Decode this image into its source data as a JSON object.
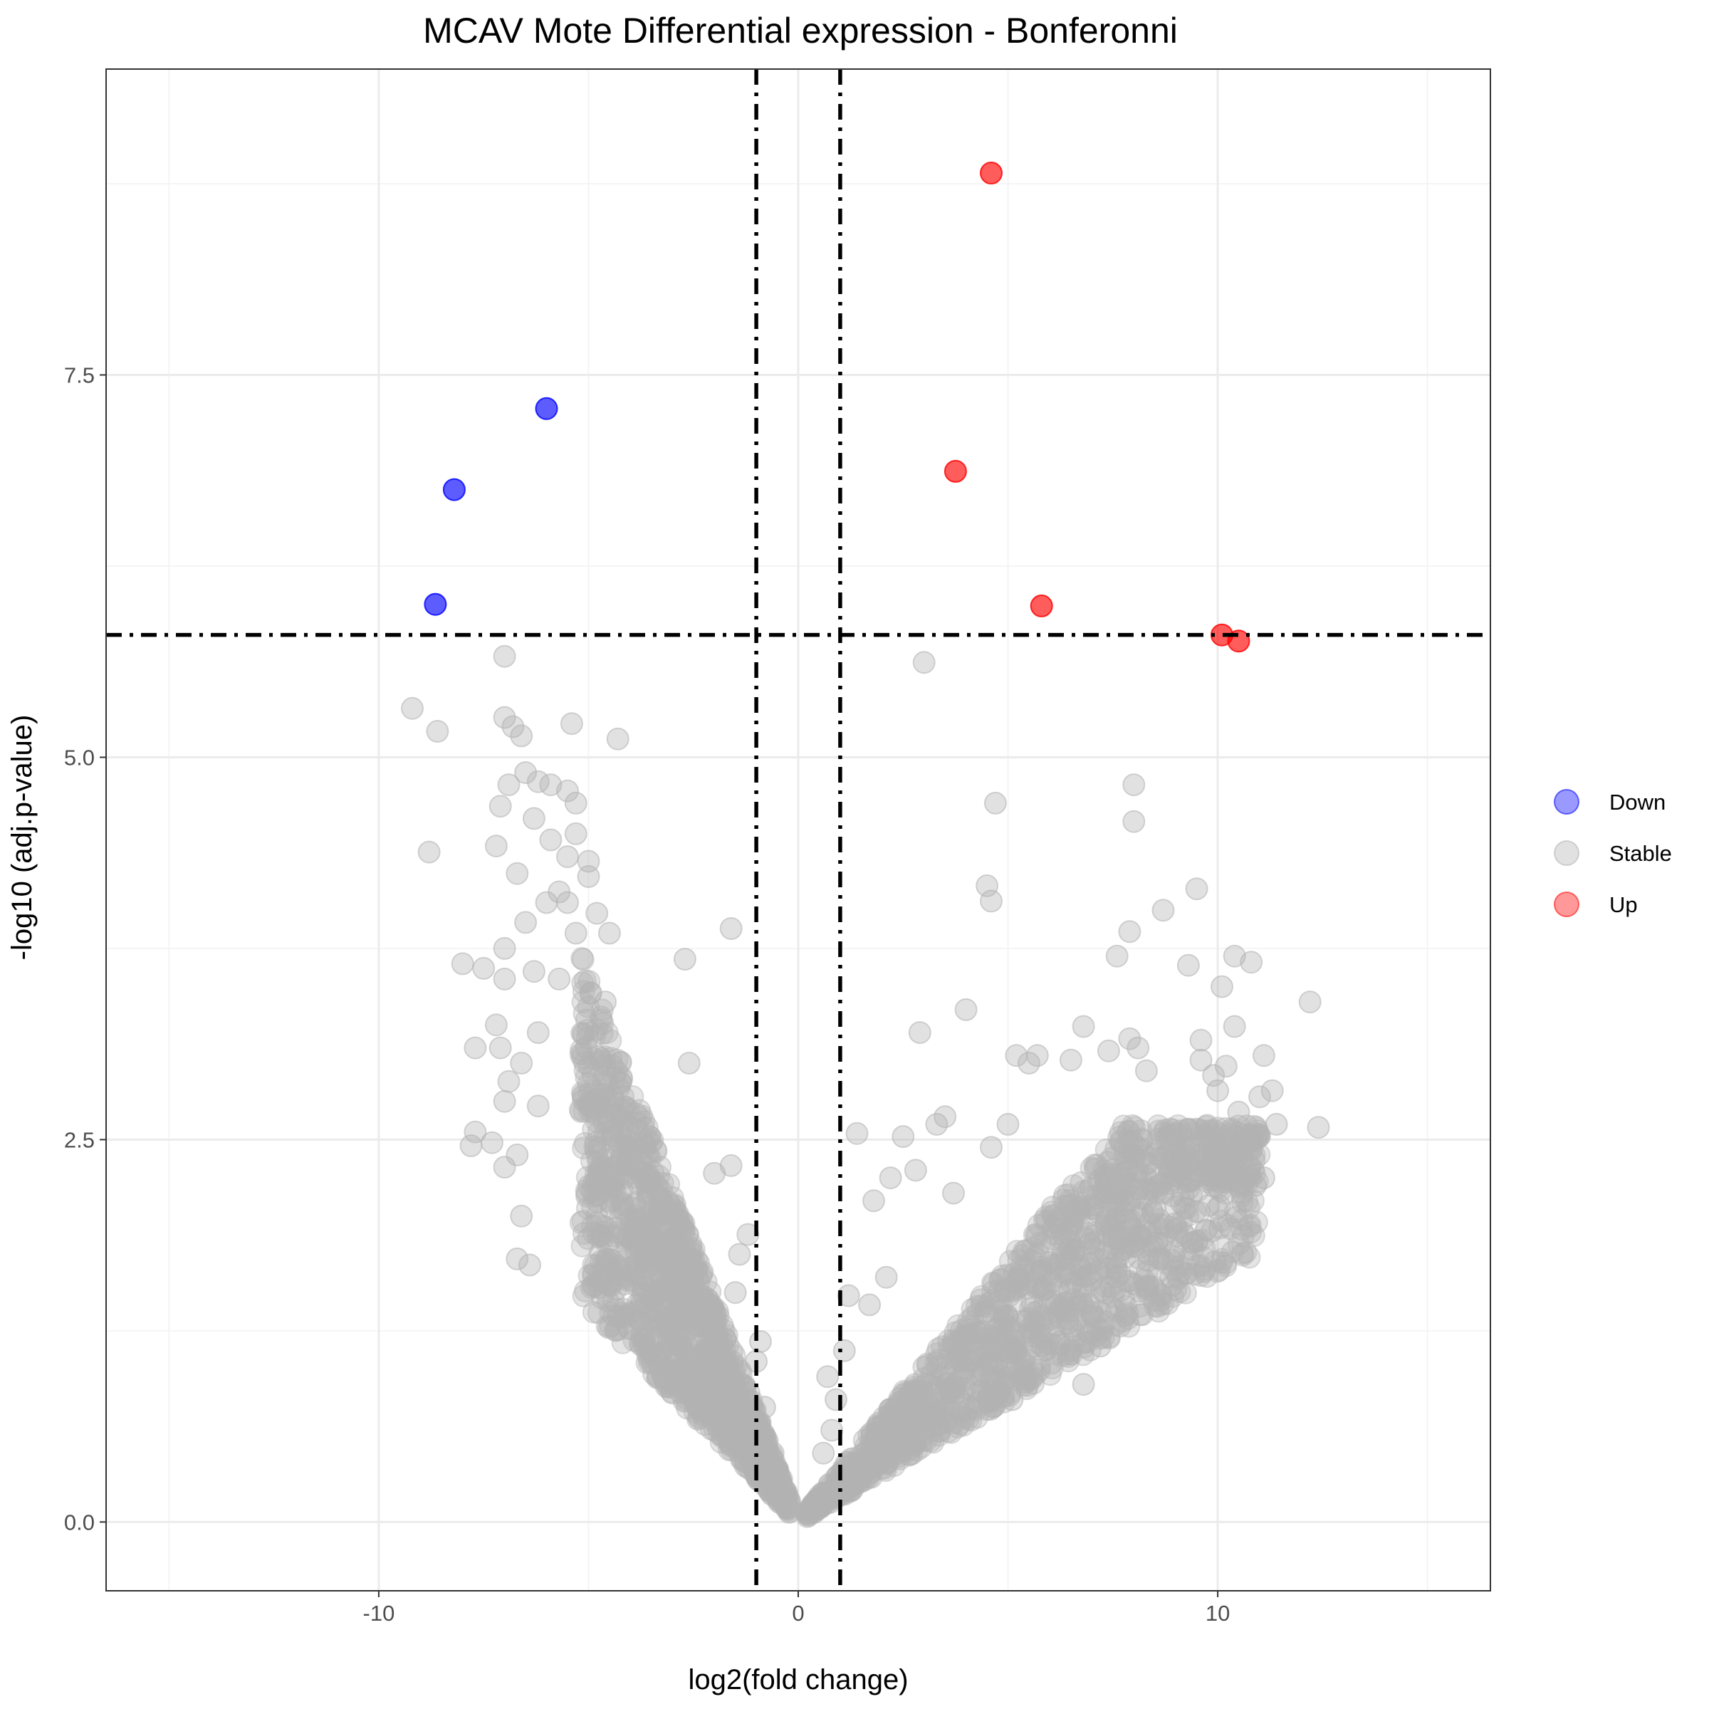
{
  "chart_data": {
    "type": "scatter",
    "title": "MCAV Mote Differential expression - Bonferonni",
    "xlabel": "log2(fold change)",
    "ylabel": "-log10 (adj.p-value)",
    "xlim": [
      -16.5,
      16.5
    ],
    "ylim": [
      -0.45,
      9.5
    ],
    "x_ticks": [
      -10,
      0,
      10
    ],
    "x_tick_labels": [
      "-10",
      "0",
      "10"
    ],
    "y_ticks": [
      0.0,
      2.5,
      5.0,
      7.5
    ],
    "y_tick_labels": [
      "0.0",
      "2.5",
      "5.0",
      "7.5"
    ],
    "grid": true,
    "legend": {
      "position": "right",
      "entries": [
        {
          "label": "Down",
          "color": "#0000ff"
        },
        {
          "label": "Stable",
          "color": "#b3b3b3"
        },
        {
          "label": "Up",
          "color": "#ff0000"
        }
      ]
    },
    "thresholds": {
      "vertical_x": [
        -1,
        1
      ],
      "horizontal_y": 5.8
    },
    "point_alpha": 0.4,
    "series": [
      {
        "name": "Down",
        "color": "#0000ff",
        "points": [
          [
            -6.0,
            7.28
          ],
          [
            -8.2,
            6.75
          ],
          [
            -8.65,
            6.0
          ]
        ]
      },
      {
        "name": "Up",
        "color": "#ff0000",
        "points": [
          [
            4.6,
            8.82
          ],
          [
            3.75,
            6.87
          ],
          [
            5.8,
            5.99
          ],
          [
            10.1,
            5.8
          ],
          [
            10.5,
            5.76
          ]
        ]
      },
      {
        "name": "Stable",
        "color": "#b3b3b3",
        "points": [
          [
            -7.0,
            5.66
          ],
          [
            -9.2,
            5.32
          ],
          [
            -8.6,
            5.17
          ],
          [
            -7.0,
            5.26
          ],
          [
            -6.8,
            5.2
          ],
          [
            -6.6,
            5.14
          ],
          [
            -5.4,
            5.22
          ],
          [
            -4.3,
            5.12
          ],
          [
            -6.5,
            4.9
          ],
          [
            -6.2,
            4.84
          ],
          [
            -5.9,
            4.82
          ],
          [
            -6.9,
            4.82
          ],
          [
            -5.5,
            4.78
          ],
          [
            -5.3,
            4.7
          ],
          [
            -7.1,
            4.68
          ],
          [
            -6.3,
            4.6
          ],
          [
            -5.3,
            4.5
          ],
          [
            -5.9,
            4.46
          ],
          [
            -7.2,
            4.42
          ],
          [
            -8.8,
            4.38
          ],
          [
            -5.5,
            4.35
          ],
          [
            -5.0,
            4.32
          ],
          [
            -5.0,
            4.22
          ],
          [
            -6.7,
            4.24
          ],
          [
            -5.7,
            4.12
          ],
          [
            -6.0,
            4.05
          ],
          [
            -5.5,
            4.05
          ],
          [
            -4.8,
            3.98
          ],
          [
            -6.5,
            3.92
          ],
          [
            -5.3,
            3.85
          ],
          [
            -4.5,
            3.85
          ],
          [
            -7.0,
            3.75
          ],
          [
            -8.0,
            3.65
          ],
          [
            -7.5,
            3.62
          ],
          [
            -7.0,
            3.55
          ],
          [
            -6.3,
            3.6
          ],
          [
            -5.7,
            3.55
          ],
          [
            -4.6,
            3.4
          ],
          [
            -7.2,
            3.25
          ],
          [
            -6.2,
            3.2
          ],
          [
            -7.7,
            3.1
          ],
          [
            -7.1,
            3.1
          ],
          [
            -6.6,
            3.0
          ],
          [
            -6.9,
            2.88
          ],
          [
            -7.0,
            2.75
          ],
          [
            -6.2,
            2.72
          ],
          [
            -7.7,
            2.55
          ],
          [
            -7.8,
            2.46
          ],
          [
            -7.3,
            2.48
          ],
          [
            -7.0,
            2.32
          ],
          [
            -6.7,
            2.4
          ],
          [
            -6.6,
            2.0
          ],
          [
            -6.7,
            1.72
          ],
          [
            -6.4,
            1.68
          ],
          [
            -1.6,
            3.88
          ],
          [
            -2.7,
            3.68
          ],
          [
            -2.6,
            3.0
          ],
          [
            -2.0,
            2.28
          ],
          [
            -1.6,
            2.33
          ],
          [
            -1.2,
            1.88
          ],
          [
            -1.4,
            1.75
          ],
          [
            -1.5,
            1.5
          ],
          [
            -0.9,
            1.18
          ],
          [
            -1.0,
            1.05
          ],
          [
            -0.8,
            0.75
          ],
          [
            3.0,
            5.62
          ],
          [
            8.0,
            4.82
          ],
          [
            4.7,
            4.7
          ],
          [
            8.0,
            4.58
          ],
          [
            4.5,
            4.16
          ],
          [
            4.6,
            4.06
          ],
          [
            9.5,
            4.14
          ],
          [
            8.7,
            4.0
          ],
          [
            7.9,
            3.86
          ],
          [
            7.6,
            3.7
          ],
          [
            10.4,
            3.7
          ],
          [
            10.8,
            3.66
          ],
          [
            9.3,
            3.64
          ],
          [
            10.1,
            3.5
          ],
          [
            12.2,
            3.4
          ],
          [
            4.0,
            3.35
          ],
          [
            10.4,
            3.24
          ],
          [
            6.8,
            3.24
          ],
          [
            2.9,
            3.2
          ],
          [
            7.9,
            3.16
          ],
          [
            9.6,
            3.15
          ],
          [
            8.1,
            3.1
          ],
          [
            7.4,
            3.08
          ],
          [
            9.6,
            3.02
          ],
          [
            10.2,
            2.98
          ],
          [
            11.1,
            3.05
          ],
          [
            5.7,
            3.05
          ],
          [
            5.2,
            3.05
          ],
          [
            6.5,
            3.02
          ],
          [
            5.5,
            3.0
          ],
          [
            8.3,
            2.95
          ],
          [
            9.9,
            2.92
          ],
          [
            10.0,
            2.82
          ],
          [
            10.5,
            2.68
          ],
          [
            11.0,
            2.78
          ],
          [
            11.3,
            2.82
          ],
          [
            3.5,
            2.65
          ],
          [
            3.3,
            2.6
          ],
          [
            5.0,
            2.6
          ],
          [
            4.6,
            2.45
          ],
          [
            2.5,
            2.52
          ],
          [
            1.4,
            2.54
          ],
          [
            11.4,
            2.6
          ],
          [
            12.4,
            2.58
          ],
          [
            10.8,
            2.5
          ],
          [
            10.9,
            2.2
          ],
          [
            11.1,
            2.25
          ],
          [
            2.2,
            2.25
          ],
          [
            1.8,
            2.1
          ],
          [
            2.8,
            2.3
          ],
          [
            3.7,
            2.15
          ],
          [
            2.1,
            1.6
          ],
          [
            1.7,
            1.42
          ],
          [
            1.2,
            1.48
          ],
          [
            1.1,
            1.12
          ],
          [
            0.7,
            0.95
          ],
          [
            0.9,
            0.8
          ],
          [
            0.8,
            0.6
          ],
          [
            0.6,
            0.45
          ],
          [
            -0.6,
            0.45
          ],
          [
            4.9,
            0.82
          ],
          [
            5.1,
            0.8
          ],
          [
            6.8,
            0.9
          ],
          [
            7.2,
            1.15
          ],
          [
            7.8,
            1.35
          ],
          [
            8.6,
            1.72
          ]
        ]
      }
    ]
  }
}
